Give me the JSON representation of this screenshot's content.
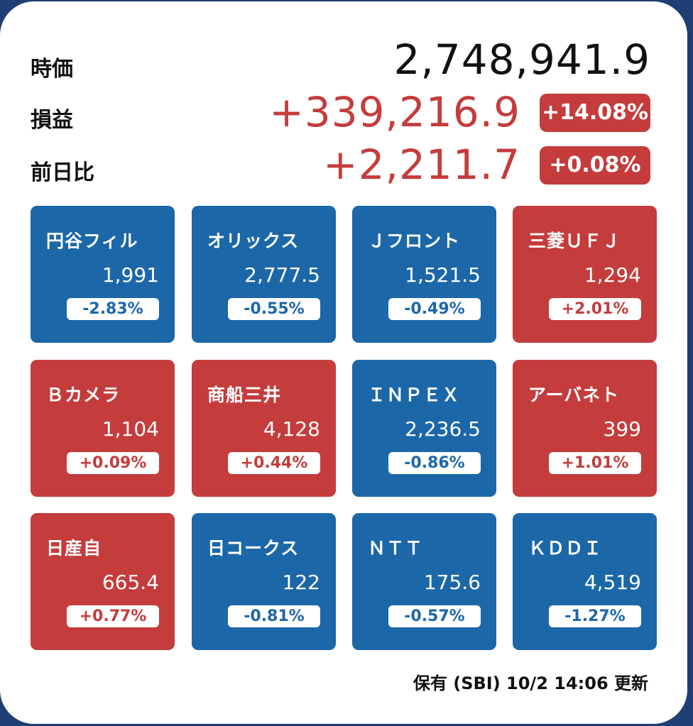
{
  "summary": {
    "market_value": {
      "label": "時価",
      "value": "2,748,941.9"
    },
    "profit_loss": {
      "label": "損益",
      "value": "+339,216.9",
      "percent": "+14.08%"
    },
    "day_change": {
      "label": "前日比",
      "value": "+2,211.7",
      "percent": "+0.08%"
    }
  },
  "colors": {
    "up": "#c43c3c",
    "down": "#1c67a8"
  },
  "stocks": [
    {
      "name": "円谷フィル",
      "price": "1,991",
      "change": "-2.83%",
      "direction": "down"
    },
    {
      "name": "オリックス",
      "price": "2,777.5",
      "change": "-0.55%",
      "direction": "down"
    },
    {
      "name": "Ｊフロント",
      "price": "1,521.5",
      "change": "-0.49%",
      "direction": "down"
    },
    {
      "name": "三菱ＵＦＪ",
      "price": "1,294",
      "change": "+2.01%",
      "direction": "up"
    },
    {
      "name": "Ｂカメラ",
      "price": "1,104",
      "change": "+0.09%",
      "direction": "up"
    },
    {
      "name": "商船三井",
      "price": "4,128",
      "change": "+0.44%",
      "direction": "up"
    },
    {
      "name": "ＩＮＰＥＸ",
      "price": "2,236.5",
      "change": "-0.86%",
      "direction": "down"
    },
    {
      "name": "アーバネト",
      "price": "399",
      "change": "+1.01%",
      "direction": "up"
    },
    {
      "name": "日産自",
      "price": "665.4",
      "change": "+0.77%",
      "direction": "up"
    },
    {
      "name": "日コークス",
      "price": "122",
      "change": "-0.81%",
      "direction": "down"
    },
    {
      "name": "ＮＴＴ",
      "price": "175.6",
      "change": "-0.57%",
      "direction": "down"
    },
    {
      "name": "ＫＤＤＩ",
      "price": "4,519",
      "change": "-1.27%",
      "direction": "down"
    }
  ],
  "footer": {
    "text": "保有 (SBI) 10/2 14:06 更新"
  }
}
